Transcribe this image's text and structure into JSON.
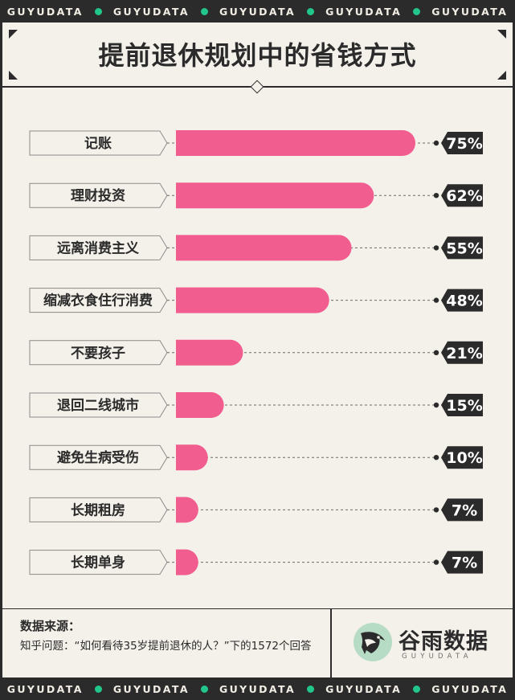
{
  "strip": {
    "brand": "GUYUDATA"
  },
  "title": "提前退休规划中的省钱方式",
  "chart_data": {
    "type": "bar",
    "orientation": "horizontal",
    "title": "提前退休规划中的省钱方式",
    "categories": [
      "记账",
      "理财投资",
      "远离消费主义",
      "缩减衣食住行消费",
      "不要孩子",
      "退回二线城市",
      "避免生病受伤",
      "长期租房",
      "长期单身"
    ],
    "values": [
      75,
      62,
      55,
      48,
      21,
      15,
      10,
      7,
      7
    ],
    "value_labels": [
      "75%",
      "62%",
      "55%",
      "48%",
      "21%",
      "15%",
      "10%",
      "7%",
      "7%"
    ],
    "unit": "%",
    "xlim": [
      0,
      75
    ],
    "grid": false,
    "legend": "none",
    "bar_color": "#f25d8f"
  },
  "source": {
    "label": "数据来源：",
    "text": "知乎问题：“如何看待35岁提前退休的人？”下的1572个回答"
  },
  "logo": {
    "name": "谷雨数据",
    "sub": "GUYUDATA"
  },
  "colors": {
    "background": "#f4f1ea",
    "frame": "#2b2b2b",
    "accent_pink": "#f25d8f",
    "accent_green": "#22c68a"
  }
}
